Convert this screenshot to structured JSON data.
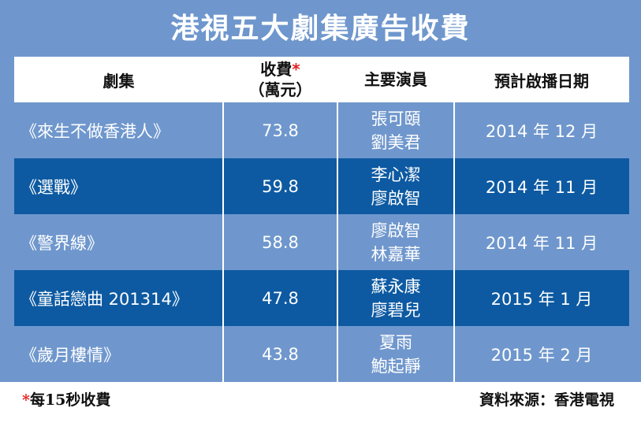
{
  "title": "港視五大劇集廣告收費",
  "headers": {
    "drama": "劇集",
    "fee_line1": "收費",
    "fee_asterisk": "*",
    "fee_line2": "（萬元）",
    "cast": "主要演員",
    "airdate": "預計啟播日期"
  },
  "rows": [
    {
      "drama": "《來生不做香港人》",
      "fee": "73.8",
      "cast1": "張可頤",
      "cast2": "劉美君",
      "airdate": "2014 年 12 月"
    },
    {
      "drama": "《選戰》",
      "fee": "59.8",
      "cast1": "李心潔",
      "cast2": "廖啟智",
      "airdate": "2014 年 11 月"
    },
    {
      "drama": "《警界線》",
      "fee": "58.8",
      "cast1": "廖啟智",
      "cast2": "林嘉華",
      "airdate": "2014 年 11 月"
    },
    {
      "drama": "《童話戀曲 201314》",
      "fee": "47.8",
      "cast1": "蘇永康",
      "cast2": "廖碧兒",
      "airdate": "2015 年 1 月"
    },
    {
      "drama": "《歲月樓情》",
      "fee": "43.8",
      "cast1": "夏雨",
      "cast2": "鮑起靜",
      "airdate": "2015 年 2 月"
    }
  ],
  "footnote": {
    "asterisk": "*",
    "text": "每15秒收費"
  },
  "source": "資料來源：香港電視",
  "colors": {
    "background": "#6f97cd",
    "dark_row": "#0d5aa2",
    "header": "#ffffff",
    "asterisk": "#e02020"
  },
  "chart_data": {
    "type": "table",
    "title": "港視五大劇集廣告收費",
    "columns": [
      "劇集",
      "收費*（萬元）",
      "主要演員",
      "預計啟播日期"
    ],
    "rows": [
      [
        "《來生不做香港人》",
        73.8,
        "張可頤 劉美君",
        "2014 年 12 月"
      ],
      [
        "《選戰》",
        59.8,
        "李心潔 廖啟智",
        "2014 年 11 月"
      ],
      [
        "《警界線》",
        58.8,
        "廖啟智 林嘉華",
        "2014 年 11 月"
      ],
      [
        "《童話戀曲 201314》",
        47.8,
        "蘇永康 廖碧兒",
        "2015 年 1 月"
      ],
      [
        "《歲月樓情》",
        43.8,
        "夏雨 鮑起靜",
        "2015 年 2 月"
      ]
    ],
    "footnote": "*每15秒收費",
    "source": "資料來源：香港電視"
  }
}
